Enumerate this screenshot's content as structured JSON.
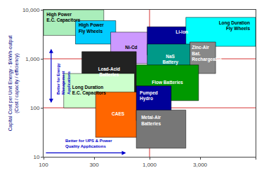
{
  "chart_data": {
    "type": "region",
    "log": true,
    "ylabel": "Capital Cost per Unit Energy - $/kWh-output\n(Cost / capacity / efficiency)",
    "xlim": [
      100,
      10000
    ],
    "ylim": [
      10,
      10000
    ],
    "xticks": [
      100,
      300,
      {
        "value": 1000,
        "label": "1,000"
      },
      {
        "value": 3000,
        "label": "3,000"
      },
      {
        "value": 10000,
        "label": "10,000"
      }
    ],
    "yticks": [
      10,
      100,
      {
        "value": 1000,
        "label": "1,000"
      },
      {
        "value": 10000,
        "label": "10,000"
      }
    ],
    "regions": [
      {
        "name": "High Power\nE.C. Capacitors",
        "x0": 100,
        "x1": 370,
        "y0": 3000,
        "y1": 10000,
        "color": "#aaeebb"
      },
      {
        "name": "High Power\nFly Wheels",
        "x0": 200,
        "x1": 480,
        "y0": 2000,
        "y1": 6000,
        "color": "#00ccff"
      },
      {
        "name": "Ni-Cd",
        "x0": 430,
        "x1": 1050,
        "y0": 800,
        "y1": 3500,
        "color": "#cc99ff"
      },
      {
        "name": "Lead-Acid\nBatteries",
        "x0": 230,
        "x1": 750,
        "y0": 200,
        "y1": 1400,
        "color": "#222222"
      },
      {
        "name": "Long Duration\nE.C. Capacitors",
        "x0": 155,
        "x1": 720,
        "y0": 100,
        "y1": 500,
        "color": "#ccffcc"
      },
      {
        "name": "Li-ion",
        "x0": 950,
        "x1": 2700,
        "y0": 1200,
        "y1": 4500,
        "color": "#000099"
      },
      {
        "name": "Long Duration\nFly Wheels",
        "x0": 2200,
        "x1": 10000,
        "y0": 1800,
        "y1": 7000,
        "color": "#00ffff"
      },
      {
        "name": "NaS\nBattery",
        "x0": 950,
        "x1": 2600,
        "y0": 450,
        "y1": 2000,
        "color": "#009988"
      },
      {
        "name": "Zinc-Air\nBat.\nRechargeable",
        "x0": 2400,
        "x1": 4200,
        "y0": 500,
        "y1": 2200,
        "color": "#888888"
      },
      {
        "name": "Flow Batteries",
        "x0": 750,
        "x1": 2900,
        "y0": 140,
        "y1": 750,
        "color": "#009900"
      },
      {
        "name": "CAES",
        "x0": 310,
        "x1": 820,
        "y0": 25,
        "y1": 210,
        "color": "#ff6600"
      },
      {
        "name": "Pumped\nHydro",
        "x0": 750,
        "x1": 1600,
        "y0": 55,
        "y1": 280,
        "color": "#000099"
      },
      {
        "name": "Metal-Air\nBatteries",
        "x0": 750,
        "x1": 2200,
        "y0": 15,
        "y1": 90,
        "color": "#777777"
      }
    ],
    "grid_lines": {
      "x": [
        1000
      ],
      "y": [
        100,
        1000
      ],
      "color": "#cc0000"
    },
    "arrows": [
      {
        "from": [
          118,
          120
        ],
        "to": [
          118,
          1600
        ],
        "both_ends": true,
        "color": "#0000cc"
      },
      {
        "from": [
          103,
          12
        ],
        "to": [
          600,
          12
        ],
        "both_ends": false,
        "color": "#0000cc"
      }
    ],
    "annotations": [
      {
        "text": "Better for Energy\nManagement\nApplications",
        "x": 128,
        "y": 400,
        "color": "#0000cc"
      },
      {
        "text": "Better for UPS & Power\nQuality Applications",
        "x": 155,
        "y": 14,
        "color": "#0000cc"
      }
    ]
  }
}
